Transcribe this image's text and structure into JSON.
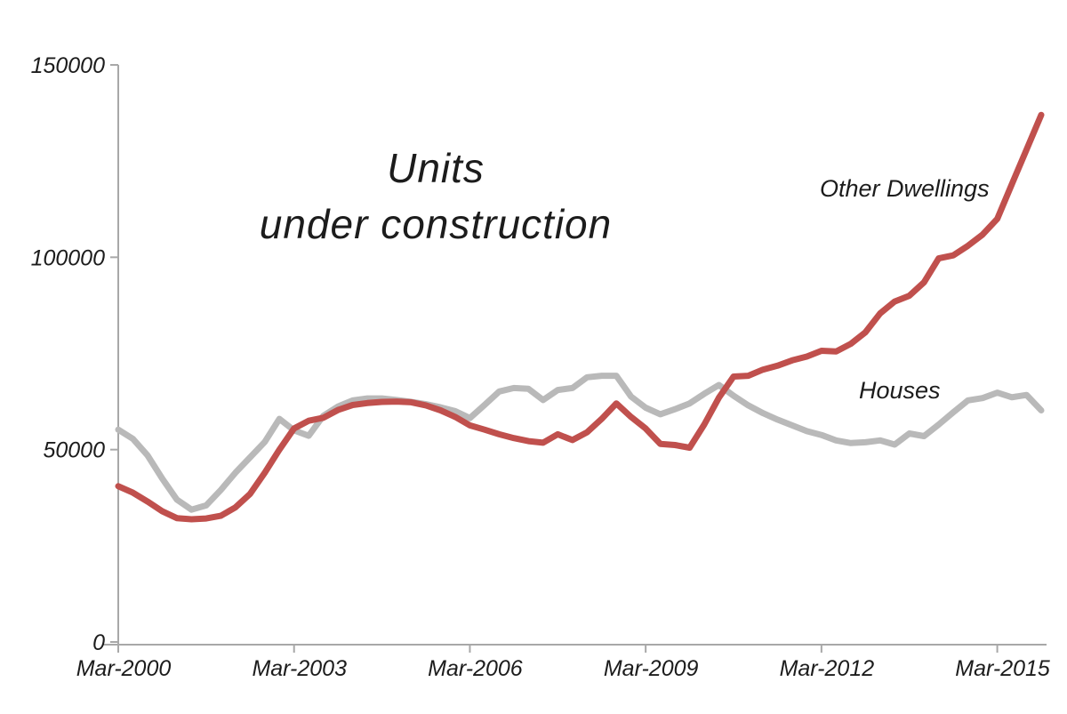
{
  "chart_data": {
    "type": "line",
    "title": "Units under construction",
    "title_lines": [
      "Units",
      "under construction"
    ],
    "xlabel": "",
    "ylabel": "",
    "ylim": [
      0,
      150000
    ],
    "grid": false,
    "legend_position": "inline-annotations-right",
    "axis_color": "#a8a8a8",
    "text_color": "#1c1c1c",
    "x": [
      "Mar-2000",
      "Jun-2000",
      "Sep-2000",
      "Dec-2000",
      "Mar-2001",
      "Jun-2001",
      "Sep-2001",
      "Dec-2001",
      "Mar-2002",
      "Jun-2002",
      "Sep-2002",
      "Dec-2002",
      "Mar-2003",
      "Jun-2003",
      "Sep-2003",
      "Dec-2003",
      "Mar-2004",
      "Jun-2004",
      "Sep-2004",
      "Dec-2004",
      "Mar-2005",
      "Jun-2005",
      "Sep-2005",
      "Dec-2005",
      "Mar-2006",
      "Jun-2006",
      "Sep-2006",
      "Dec-2006",
      "Mar-2007",
      "Jun-2007",
      "Sep-2007",
      "Dec-2007",
      "Mar-2008",
      "Jun-2008",
      "Sep-2008",
      "Dec-2008",
      "Mar-2009",
      "Jun-2009",
      "Sep-2009",
      "Dec-2009",
      "Mar-2010",
      "Jun-2010",
      "Sep-2010",
      "Dec-2010",
      "Mar-2011",
      "Jun-2011",
      "Sep-2011",
      "Dec-2011",
      "Mar-2012",
      "Jun-2012",
      "Sep-2012",
      "Dec-2012",
      "Mar-2013",
      "Jun-2013",
      "Sep-2013",
      "Dec-2013",
      "Mar-2014",
      "Jun-2014",
      "Sep-2014",
      "Dec-2014",
      "Mar-2015",
      "Jun-2015",
      "Sep-2015",
      "Dec-2015"
    ],
    "x_tick_indices": [
      0,
      12,
      24,
      36,
      48,
      60
    ],
    "x_tick_labels": [
      "Mar-2000",
      "Mar-2003",
      "Mar-2006",
      "Mar-2009",
      "Mar-2012",
      "Mar-2015"
    ],
    "y_ticks": [
      0,
      50000,
      100000,
      150000
    ],
    "y_tick_labels": [
      "0",
      "50000",
      "100000",
      "150000"
    ],
    "series": [
      {
        "name": "Houses",
        "color": "#b9b9b9",
        "values": [
          55200,
          52800,
          48500,
          42500,
          37000,
          34400,
          35500,
          39500,
          44000,
          48000,
          52000,
          58000,
          55000,
          53600,
          58800,
          61200,
          62800,
          63300,
          63300,
          62900,
          62400,
          61800,
          61000,
          60000,
          58200,
          61600,
          65100,
          66000,
          65800,
          62900,
          65500,
          66000,
          68800,
          69200,
          69200,
          63800,
          60900,
          59200,
          60500,
          62000,
          64500,
          66800,
          64000,
          61500,
          59500,
          57800,
          56300,
          54800,
          53800,
          52400,
          51700,
          51900,
          52400,
          51300,
          54200,
          53500,
          56500,
          59700,
          62800,
          63400,
          64800,
          63600,
          64200,
          60200
        ]
      },
      {
        "name": "Other Dwellings",
        "color": "#c0504d",
        "values": [
          40500,
          38800,
          36500,
          34000,
          32200,
          31900,
          32100,
          32800,
          35000,
          38500,
          44000,
          50000,
          55500,
          57500,
          58300,
          60300,
          61600,
          62100,
          62400,
          62500,
          62300,
          61500,
          60200,
          58500,
          56300,
          55200,
          54000,
          53000,
          52200,
          51800,
          54000,
          52500,
          54500,
          58000,
          62000,
          58500,
          55500,
          51500,
          51200,
          50500,
          56500,
          63500,
          69000,
          69200,
          70800,
          71800,
          73200,
          74200,
          75700,
          75500,
          77500,
          80500,
          85400,
          88500,
          90000,
          93500,
          99700,
          100500,
          103000,
          105900,
          110000,
          119000,
          128000,
          137000
        ]
      }
    ],
    "annotations": [
      {
        "text": "Other Dwellings",
        "series": "Other Dwellings"
      },
      {
        "text": "Houses",
        "series": "Houses"
      }
    ]
  }
}
